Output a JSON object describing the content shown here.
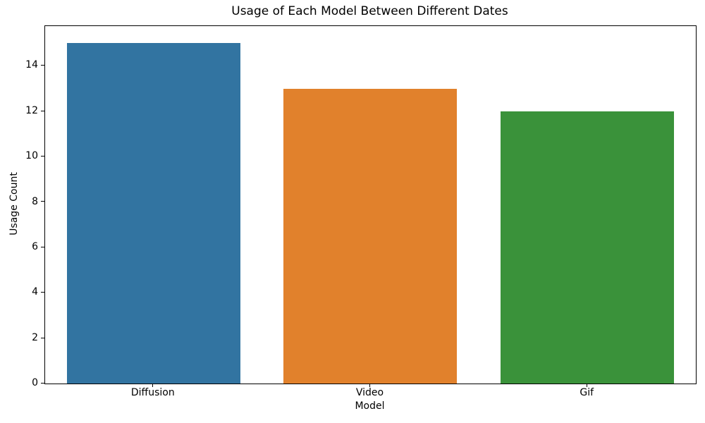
{
  "chart_data": {
    "type": "bar",
    "title": "Usage of Each Model Between Different Dates",
    "xlabel": "Model",
    "ylabel": "Usage Count",
    "categories": [
      "Diffusion",
      "Video",
      "Gif"
    ],
    "values": [
      15,
      13,
      12
    ],
    "bar_colors": [
      "#3274a1",
      "#e1812c",
      "#3a923a"
    ],
    "ylim": [
      0,
      15.75
    ],
    "yticks": [
      0,
      2,
      4,
      6,
      8,
      10,
      12,
      14
    ],
    "bar_width_fraction": 0.8,
    "grid": false,
    "legend": "none",
    "spine_color": "#000000",
    "background_color": "#ffffff"
  }
}
